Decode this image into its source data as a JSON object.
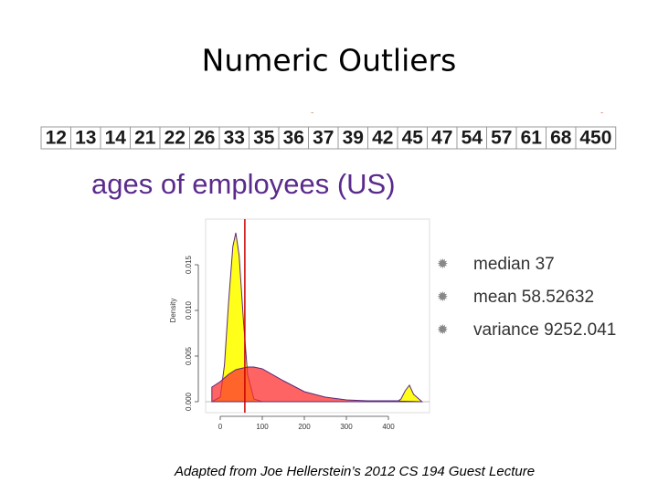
{
  "title": "Numeric Outliers",
  "numbers": [
    12,
    13,
    14,
    21,
    22,
    26,
    33,
    35,
    36,
    37,
    39,
    42,
    45,
    47,
    54,
    57,
    61,
    68,
    450
  ],
  "heading": "ages of employees (US)",
  "bullets": [
    "median 37",
    "mean 58.52632",
    "variance 9252.041"
  ],
  "caption": "Adapted from Joe Hellerstein’s  2012 CS 194 Guest Lecture",
  "chart_data": {
    "type": "density",
    "y_label": "Density",
    "x": [
      -20,
      0,
      10,
      20,
      30,
      37,
      45,
      55,
      65,
      80,
      100,
      150,
      200,
      250,
      300,
      350,
      400,
      420,
      430,
      440,
      450,
      460,
      480
    ],
    "series": [
      {
        "color": "#ffff00",
        "values": [
          0,
          0.0005,
          0.004,
          0.011,
          0.017,
          0.0185,
          0.016,
          0.009,
          0.003,
          0.0003,
          0,
          0,
          0,
          0,
          0,
          0,
          0,
          0,
          0.0003,
          0.0012,
          0.0018,
          0.0008,
          0
        ]
      },
      {
        "color": "#ff3030",
        "values": [
          0.0016,
          0.0022,
          0.0026,
          0.003,
          0.0033,
          0.0035,
          0.0036,
          0.0037,
          0.0038,
          0.0038,
          0.0036,
          0.0023,
          0.0011,
          0.0005,
          0.0002,
          0.0001,
          0.0001,
          0.0001,
          6e-05,
          5e-05,
          4e-05,
          3e-05,
          0
        ]
      }
    ],
    "mean_line": 58.5,
    "mean_line_color": "#cc0000",
    "xlim": [
      -25,
      490
    ],
    "ylim": [
      -0.0007,
      0.0195
    ],
    "xticks": [
      0,
      100,
      200,
      300,
      400
    ],
    "yticks": [
      {
        "value": 0,
        "label": "0.000"
      },
      {
        "value": 0.005,
        "label": "0.005"
      },
      {
        "value": 0.01,
        "label": "0.010"
      },
      {
        "value": 0.015,
        "label": "0.015"
      }
    ]
  }
}
